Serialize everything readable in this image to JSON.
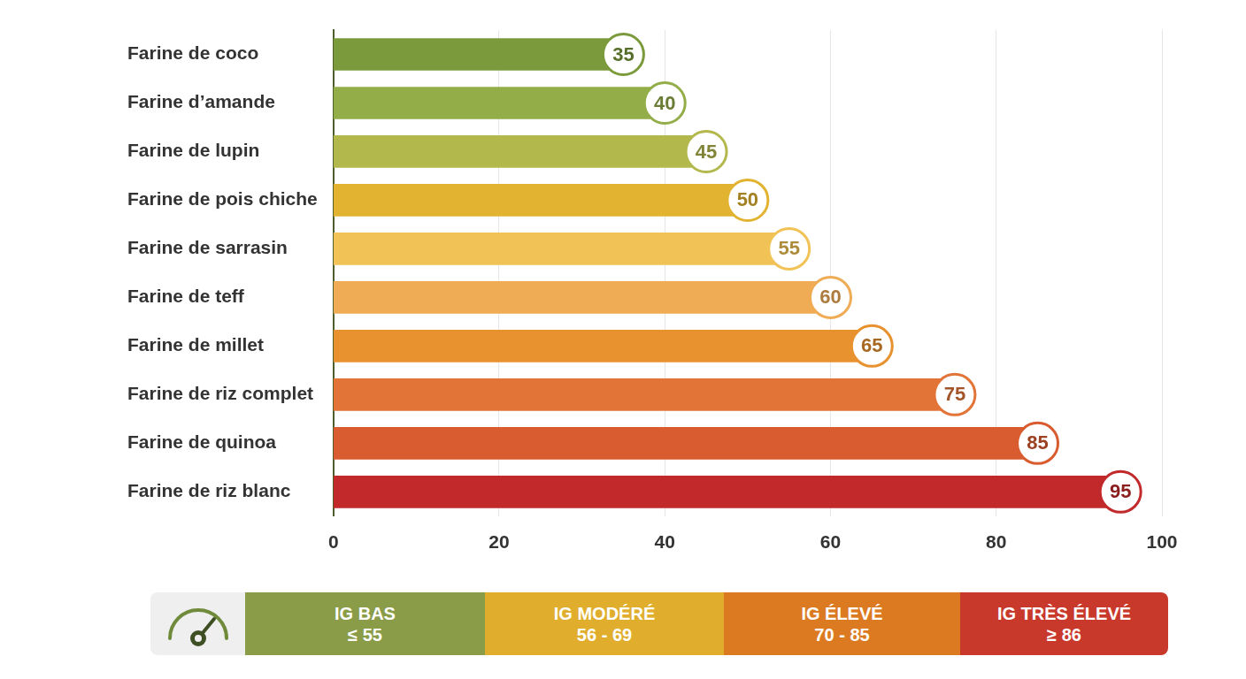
{
  "chart_data": {
    "type": "bar",
    "orientation": "horizontal",
    "categories": [
      "Farine de coco",
      "Farine d’amande",
      "Farine de lupin",
      "Farine de pois chiche",
      "Farine de sarrasin",
      "Farine de teff",
      "Farine de millet",
      "Farine de riz complet",
      "Farine de quinoa",
      "Farine de riz blanc"
    ],
    "values": [
      35,
      40,
      45,
      50,
      55,
      60,
      65,
      75,
      85,
      95
    ],
    "colors": [
      "#7a9a3c",
      "#93ad48",
      "#b3b84c",
      "#e2b331",
      "#f1c255",
      "#f0ab55",
      "#e8922f",
      "#e27438",
      "#d95c30",
      "#c1292a"
    ],
    "xlim": [
      0,
      100
    ],
    "xticks": [
      0,
      20,
      40,
      60,
      80,
      100
    ],
    "grid": true,
    "data_labels": true,
    "annotations": [
      {
        "text": "IG BAS",
        "subtext": "≤ 55",
        "color": "#8a9c47"
      },
      {
        "text": "IG MODÉRÉ",
        "subtext": "56 - 69",
        "color": "#e0ae2c"
      },
      {
        "text": "IG ÉLEVÉ",
        "subtext": "70 - 85",
        "color": "#dc7a22"
      },
      {
        "text": "IG TRÈS ÉLEVÉ",
        "subtext": "≥ 86",
        "color": "#c8382b"
      }
    ]
  }
}
